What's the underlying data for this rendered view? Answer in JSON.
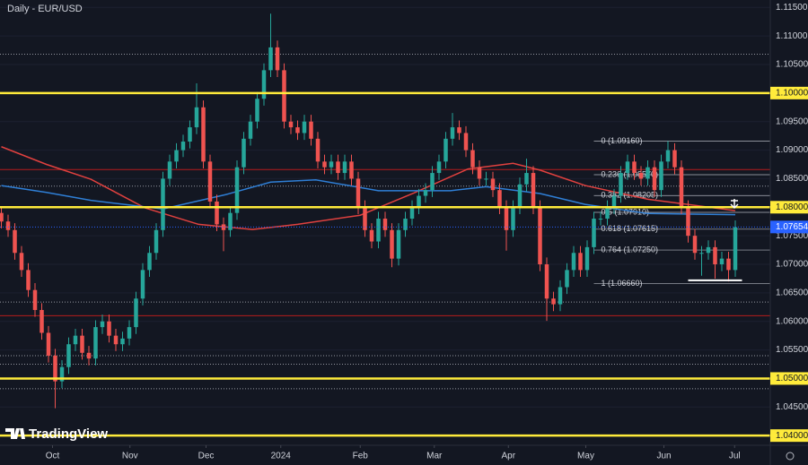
{
  "chart_data": {
    "type": "candlestick",
    "title": "Daily - EUR/USD",
    "brand": "TradingView",
    "up_color": "#26a69a",
    "down_color": "#ef5350",
    "xlim": [
      -0.2,
      114.2
    ],
    "ylim": [
      1.0383,
      1.1163
    ],
    "xticks": [
      {
        "value": 7.6,
        "label": "Oct"
      },
      {
        "value": 19.1,
        "label": "Nov"
      },
      {
        "value": 30.4,
        "label": "Dec"
      },
      {
        "value": 41.5,
        "label": "2024"
      },
      {
        "value": 53.3,
        "label": "Feb"
      },
      {
        "value": 64.3,
        "label": "Mar"
      },
      {
        "value": 75.3,
        "label": "Apr"
      },
      {
        "value": 86.8,
        "label": "May"
      },
      {
        "value": 98.4,
        "label": "Jun"
      },
      {
        "value": 108.9,
        "label": "Jul"
      }
    ],
    "yticks": [
      {
        "value": 1.115,
        "label": "1.11500"
      },
      {
        "value": 1.11,
        "label": "1.11000"
      },
      {
        "value": 1.105,
        "label": "1.10500"
      },
      {
        "value": 1.1,
        "label": "1.10000"
      },
      {
        "value": 1.095,
        "label": "1.09500"
      },
      {
        "value": 1.09,
        "label": "1.09000"
      },
      {
        "value": 1.085,
        "label": "1.08500"
      },
      {
        "value": 1.08,
        "label": "1.08000"
      },
      {
        "value": 1.075,
        "label": "1.07500"
      },
      {
        "value": 1.07,
        "label": "1.07000"
      },
      {
        "value": 1.065,
        "label": "1.06500"
      },
      {
        "value": 1.06,
        "label": "1.06000"
      },
      {
        "value": 1.055,
        "label": "1.05500"
      },
      {
        "value": 1.05,
        "label": "1.05000"
      },
      {
        "value": 1.045,
        "label": "1.04500"
      },
      {
        "value": 1.04,
        "label": "1.04000"
      }
    ],
    "open": [
      1.079,
      1.0775,
      1.076,
      1.072,
      1.069,
      1.0655,
      1.062,
      1.058,
      1.054,
      1.0495,
      1.052,
      1.056,
      1.0575,
      1.0545,
      1.0535,
      1.059,
      1.06,
      1.0575,
      1.056,
      1.057,
      1.059,
      1.064,
      1.069,
      1.072,
      1.076,
      1.085,
      1.088,
      1.09,
      1.0915,
      1.094,
      1.0975,
      1.088,
      1.081,
      1.077,
      1.076,
      1.079,
      1.087,
      1.092,
      1.095,
      1.099,
      1.104,
      1.108,
      1.104,
      1.095,
      1.094,
      1.093,
      1.095,
      1.092,
      1.088,
      1.087,
      1.088,
      1.086,
      1.088,
      1.085,
      1.08,
      1.076,
      1.074,
      1.078,
      1.076,
      1.071,
      1.076,
      1.078,
      1.08,
      1.082,
      1.083,
      1.086,
      1.088,
      1.092,
      1.094,
      1.093,
      1.09,
      1.087,
      1.085,
      1.085,
      1.083,
      1.08,
      1.076,
      1.08,
      1.084,
      1.086,
      1.08,
      1.07,
      1.064,
      1.063,
      1.066,
      1.069,
      1.072,
      1.069,
      1.073,
      1.078,
      1.078,
      1.08,
      1.082,
      1.086,
      1.088,
      1.086,
      1.085,
      1.087,
      1.083,
      1.088,
      1.09,
      1.087,
      1.08,
      1.075,
      1.072,
      1.072,
      1.073,
      1.07,
      1.071,
      1.069
    ],
    "high": [
      1.0802,
      1.0787,
      1.0772,
      1.0732,
      1.0702,
      1.0667,
      1.0632,
      1.0592,
      1.0552,
      1.0532,
      1.0572,
      1.0587,
      1.0587,
      1.0557,
      1.0602,
      1.0612,
      1.0612,
      1.0587,
      1.0582,
      1.0602,
      1.0652,
      1.0702,
      1.0732,
      1.0772,
      1.0862,
      1.0892,
      1.0912,
      1.0927,
      1.0952,
      1.1017,
      1.0987,
      1.0892,
      1.0822,
      1.0782,
      1.0802,
      1.0882,
      1.0932,
      1.0962,
      1.1002,
      1.1052,
      1.1139,
      1.1092,
      1.1052,
      1.0962,
      1.0952,
      1.0962,
      1.0962,
      1.0932,
      1.0892,
      1.0892,
      1.0892,
      1.0892,
      1.0892,
      1.0862,
      1.0812,
      1.0772,
      1.0792,
      1.0792,
      1.0772,
      1.0772,
      1.0792,
      1.0812,
      1.0832,
      1.0842,
      1.0872,
      1.0892,
      1.0932,
      1.0965,
      1.0952,
      1.0942,
      1.0912,
      1.0882,
      1.0862,
      1.0862,
      1.0842,
      1.0812,
      1.0812,
      1.0852,
      1.0885,
      1.0872,
      1.0812,
      1.0712,
      1.0652,
      1.0672,
      1.0702,
      1.0732,
      1.0732,
      1.0742,
      1.0792,
      1.0792,
      1.0812,
      1.0832,
      1.0872,
      1.0892,
      1.0892,
      1.0872,
      1.0882,
      1.0882,
      1.0892,
      1.0916,
      1.0912,
      1.0882,
      1.0812,
      1.0762,
      1.0732,
      1.0742,
      1.0742,
      1.0722,
      1.0722,
      1.0777
    ],
    "low": [
      1.0763,
      1.0748,
      1.0708,
      1.0678,
      1.0643,
      1.0608,
      1.0568,
      1.0528,
      1.0448,
      1.0483,
      1.0508,
      1.0548,
      1.0533,
      1.0523,
      1.0523,
      1.0578,
      1.0563,
      1.0548,
      1.0548,
      1.0558,
      1.0578,
      1.0628,
      1.0678,
      1.0708,
      1.0748,
      1.0838,
      1.0868,
      1.0888,
      1.0903,
      1.0928,
      1.0868,
      1.0798,
      1.0758,
      1.0723,
      1.0748,
      1.0778,
      1.0858,
      1.0908,
      1.0938,
      1.0978,
      1.1028,
      1.1028,
      1.0938,
      1.0928,
      1.0918,
      1.0918,
      1.0908,
      1.0868,
      1.0858,
      1.0858,
      1.0848,
      1.0848,
      1.0838,
      1.0788,
      1.0748,
      1.0728,
      1.0728,
      1.0748,
      1.0695,
      1.0698,
      1.0748,
      1.0768,
      1.0788,
      1.0808,
      1.0818,
      1.0848,
      1.0868,
      1.0908,
      1.0918,
      1.0888,
      1.0858,
      1.0838,
      1.0838,
      1.0818,
      1.0788,
      1.0724,
      1.0748,
      1.0788,
      1.0828,
      1.0788,
      1.0688,
      1.0601,
      1.0618,
      1.0618,
      1.0648,
      1.0678,
      1.0678,
      1.0678,
      1.0718,
      1.0768,
      1.0768,
      1.0788,
      1.0808,
      1.0848,
      1.0848,
      1.0838,
      1.0838,
      1.0818,
      1.0818,
      1.0868,
      1.0858,
      1.0788,
      1.0738,
      1.0708,
      1.068,
      1.0708,
      1.0675,
      1.0688,
      1.067,
      1.0678
    ],
    "close": [
      1.0775,
      1.076,
      1.072,
      1.069,
      1.0655,
      1.062,
      1.058,
      1.054,
      1.0495,
      1.052,
      1.056,
      1.0575,
      1.0545,
      1.0535,
      1.059,
      1.06,
      1.0575,
      1.056,
      1.057,
      1.059,
      1.064,
      1.069,
      1.072,
      1.076,
      1.085,
      1.088,
      1.09,
      1.0915,
      1.094,
      1.0975,
      1.088,
      1.081,
      1.077,
      1.076,
      1.079,
      1.087,
      1.092,
      1.095,
      1.099,
      1.104,
      1.108,
      1.104,
      1.095,
      1.094,
      1.093,
      1.095,
      1.092,
      1.088,
      1.087,
      1.088,
      1.086,
      1.088,
      1.085,
      1.08,
      1.076,
      1.074,
      1.078,
      1.076,
      1.071,
      1.076,
      1.078,
      1.08,
      1.082,
      1.083,
      1.086,
      1.088,
      1.092,
      1.094,
      1.093,
      1.09,
      1.087,
      1.085,
      1.085,
      1.083,
      1.08,
      1.076,
      1.08,
      1.084,
      1.086,
      1.08,
      1.07,
      1.064,
      1.063,
      1.066,
      1.069,
      1.072,
      1.069,
      1.073,
      1.078,
      1.078,
      1.08,
      1.082,
      1.086,
      1.088,
      1.086,
      1.085,
      1.087,
      1.083,
      1.088,
      1.09,
      1.087,
      1.08,
      1.075,
      1.072,
      1.072,
      1.073,
      1.07,
      1.071,
      1.069,
      1.0765
    ],
    "lines": [
      {
        "color": "#e0413f",
        "x": [
          0,
          6.7,
          13.3,
          21.3,
          29.3,
          37.3,
          44,
          53.3,
          61.3,
          69.3,
          76,
          80,
          86.7,
          96,
          109
        ],
        "values": [
          1.0906,
          1.0875,
          1.0849,
          1.0799,
          1.077,
          1.0761,
          1.077,
          1.0786,
          1.0825,
          1.0867,
          1.0877,
          1.0865,
          1.0838,
          1.0814,
          1.0794
        ]
      },
      {
        "color": "#2f7fd6",
        "x": [
          0,
          6.7,
          13.3,
          24,
          33.3,
          40,
          46.7,
          56,
          66.7,
          72,
          80,
          86.7,
          96,
          109
        ],
        "values": [
          1.0838,
          1.0826,
          1.0812,
          1.0797,
          1.0822,
          1.0844,
          1.0848,
          1.0829,
          1.0829,
          1.0836,
          1.0824,
          1.0805,
          1.0789,
          1.0787
        ]
      }
    ],
    "key_levels": {
      "color": "#ffeb3b",
      "levels": [
        1.1,
        1.08,
        1.05,
        1.04
      ]
    },
    "red_levels": {
      "color": "#b71c1c",
      "levels": [
        1.0866,
        1.061
      ]
    },
    "dotted_levels": {
      "color": "#9598a1",
      "levels": [
        1.1068,
        1.0837,
        1.0634,
        1.054,
        1.0525,
        1.0482
      ]
    },
    "fib": {
      "color": "#b2b5be",
      "start_x": 88,
      "levels": [
        {
          "label": "0 (1.09160)",
          "value": 1.0916
        },
        {
          "label": "0.236 (1.08570)",
          "value": 1.0857
        },
        {
          "label": "0.382 (1.08205)",
          "value": 1.08205
        },
        {
          "label": "0.5 (1.07910)",
          "value": 1.0791
        },
        {
          "label": "0.618 (1.07615)",
          "value": 1.07615
        },
        {
          "label": "0.764 (1.07250)",
          "value": 1.0725
        },
        {
          "label": "1 (1.06660)",
          "value": 1.0666
        }
      ]
    },
    "support": {
      "color": "#ffffff",
      "value": 1.0672,
      "x": [
        102,
        110
      ]
    },
    "last_price": {
      "value": 1.07654,
      "color": "#2962ff"
    }
  }
}
